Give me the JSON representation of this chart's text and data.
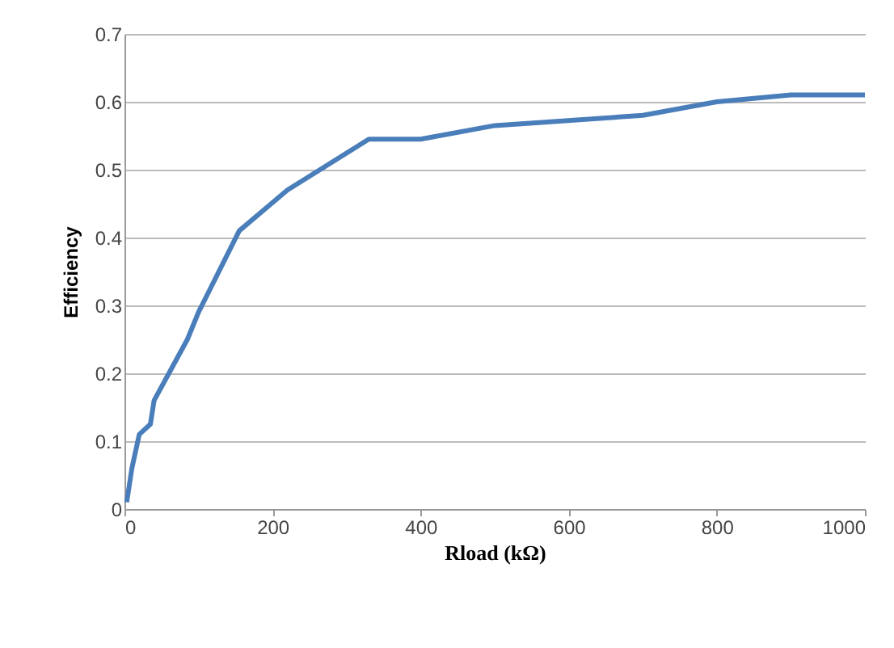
{
  "chart_data": {
    "type": "line",
    "xlabel": "Rload (kΩ)",
    "ylabel": "Efficiency",
    "x": [
      3,
      10,
      20,
      35,
      40,
      60,
      85,
      100,
      155,
      220,
      330,
      400,
      500,
      700,
      800,
      900,
      1000
    ],
    "series": [
      {
        "color": "#4a7ebb",
        "values": [
          0.01,
          0.06,
          0.11,
          0.125,
          0.16,
          0.2,
          0.25,
          0.29,
          0.41,
          0.47,
          0.545,
          0.545,
          0.565,
          0.58,
          0.6,
          0.61,
          0.61
        ]
      }
    ],
    "xlim": [
      0,
      1000
    ],
    "xticks": [
      0,
      200,
      400,
      600,
      800,
      1000
    ],
    "ylim": [
      0,
      0.7
    ],
    "yticks": [
      0,
      0.1,
      0.2,
      0.3,
      0.4,
      0.5,
      0.6,
      0.7
    ],
    "grid": "y",
    "marker": "none",
    "line_style": "solid"
  }
}
